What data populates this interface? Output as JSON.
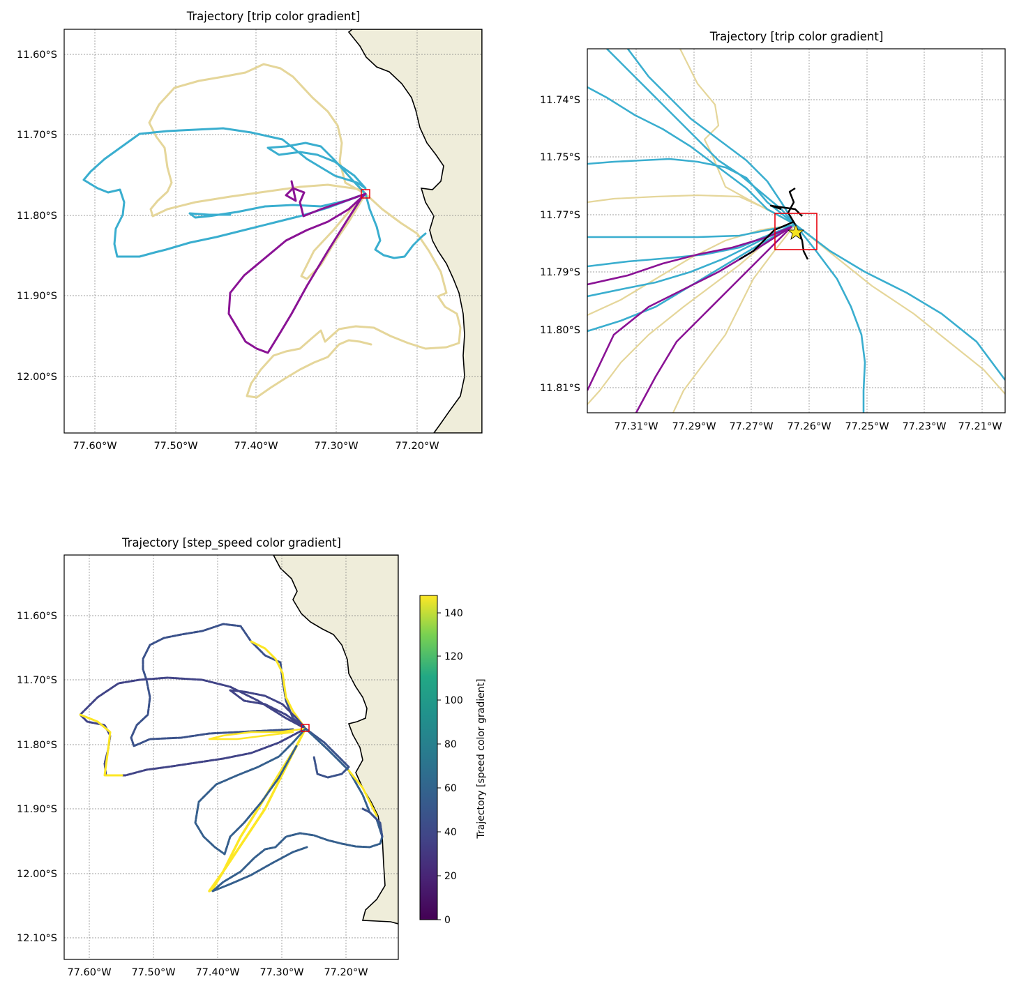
{
  "figure": {
    "colors": {
      "land": "#efedda",
      "coast": "#000000",
      "grid": "#808080",
      "trip_blue": "#3aaecf",
      "trip_sand": "#e5d69a",
      "trip_purple": "#8a1395",
      "box": "#e8000b",
      "star": "#f5e31f"
    }
  },
  "panels": [
    {
      "id": "overview",
      "title": "Trajectory [trip color gradient]",
      "lon_ticks": [
        "77.60°W",
        "77.50°W",
        "77.40°W",
        "77.30°W",
        "77.20°W"
      ],
      "lat_ticks": [
        "11.60°S",
        "11.70°S",
        "11.80°S",
        "11.90°S",
        "12.00°S"
      ]
    },
    {
      "id": "zoom",
      "title": "Trajectory [trip color gradient]",
      "lon_ticks": [
        "77.31°W",
        "77.29°W",
        "77.27°W",
        "77.26°W",
        "77.25°W",
        "77.23°W",
        "77.21°W"
      ],
      "lat_ticks": [
        "11.74°S",
        "11.75°S",
        "11.77°S",
        "11.79°S",
        "11.80°S",
        "11.81°S"
      ]
    },
    {
      "id": "speed",
      "title": "Trajectory [step_speed color gradient]",
      "lon_ticks": [
        "77.60°W",
        "77.50°W",
        "77.40°W",
        "77.30°W",
        "77.20°W"
      ],
      "lat_ticks": [
        "11.60°S",
        "11.70°S",
        "11.80°S",
        "11.90°S",
        "12.00°S",
        "12.10°S"
      ],
      "colorbar": {
        "label": "Trajectory [speed color gradient]",
        "ticks": [
          "0",
          "20",
          "40",
          "60",
          "80",
          "100",
          "120",
          "140"
        ],
        "colormap": "viridis"
      }
    }
  ]
}
